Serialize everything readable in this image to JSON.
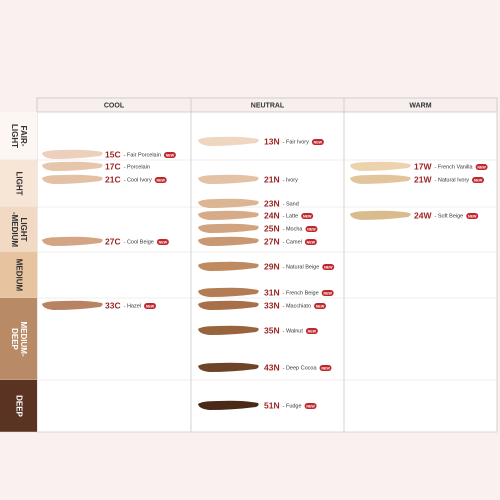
{
  "columns": [
    "COOL",
    "NEUTRAL",
    "WARM"
  ],
  "rows": [
    {
      "lines": [
        "FAIR-",
        "LIGHT"
      ]
    },
    {
      "lines": [
        "LIGHT"
      ]
    },
    {
      "lines": [
        "LIGHT",
        "-MEDIUM"
      ]
    },
    {
      "lines": [
        "MEDIUM"
      ]
    },
    {
      "lines": [
        "MEDIUM-",
        "DEEP"
      ]
    },
    {
      "lines": [
        "DEEP"
      ]
    }
  ],
  "shades": [
    {
      "code": "15C",
      "name": "- Fair Porcelain",
      "badge": "NEW",
      "color": "#ecd0bb"
    },
    {
      "code": "17C",
      "name": "- Porcelain",
      "color": "#e6c6ab"
    },
    {
      "code": "21C",
      "name": "- Cool Ivory",
      "badge": "NEW",
      "color": "#e4c0a4"
    },
    {
      "code": "27C",
      "name": "- Cool Beige",
      "badge": "NEW",
      "color": "#d4a585"
    },
    {
      "code": "33C",
      "name": "- Hazel",
      "badge": "NEW",
      "color": "#b88362"
    },
    {
      "code": "13N",
      "name": "- Fair Ivory",
      "badge": "NEW",
      "color": "#efd6c0"
    },
    {
      "code": "21N",
      "name": "- Ivory",
      "color": "#e4c3a4"
    },
    {
      "code": "23N",
      "name": "- Sand",
      "color": "#dcb593"
    },
    {
      "code": "24N",
      "name": "- Latte",
      "badge": "NEW",
      "color": "#d7ab88"
    },
    {
      "code": "25N",
      "name": "- Mocha",
      "badge": "NEW",
      "color": "#d1a47f"
    },
    {
      "code": "27N",
      "name": "- Camel",
      "badge": "NEW",
      "color": "#c99873"
    },
    {
      "code": "29N",
      "name": "- Natural Beige",
      "badge": "NEW",
      "color": "#c08a61"
    },
    {
      "code": "31N",
      "name": "- French Beige",
      "badge": "NEW",
      "color": "#b37c55"
    },
    {
      "code": "33N",
      "name": "- Macchiato",
      "badge": "NEW",
      "color": "#a87049"
    },
    {
      "code": "35N",
      "name": "- Walnut",
      "badge": "NEW",
      "color": "#97643e"
    },
    {
      "code": "43N",
      "name": "- Deep Cocoa",
      "badge": "NEW",
      "color": "#6e4426"
    },
    {
      "code": "51N",
      "name": "- Fudge",
      "badge": "NEW",
      "color": "#4a2a17"
    },
    {
      "code": "17W",
      "name": "- French Vanilla",
      "badge": "NEW",
      "color": "#ecd3ad"
    },
    {
      "code": "21W",
      "name": "- Natural Ivory",
      "badge": "NEW",
      "color": "#e3c59d"
    },
    {
      "code": "24W",
      "name": "- Soft Beige",
      "badge": "NEW",
      "color": "#d9bc8e"
    }
  ]
}
